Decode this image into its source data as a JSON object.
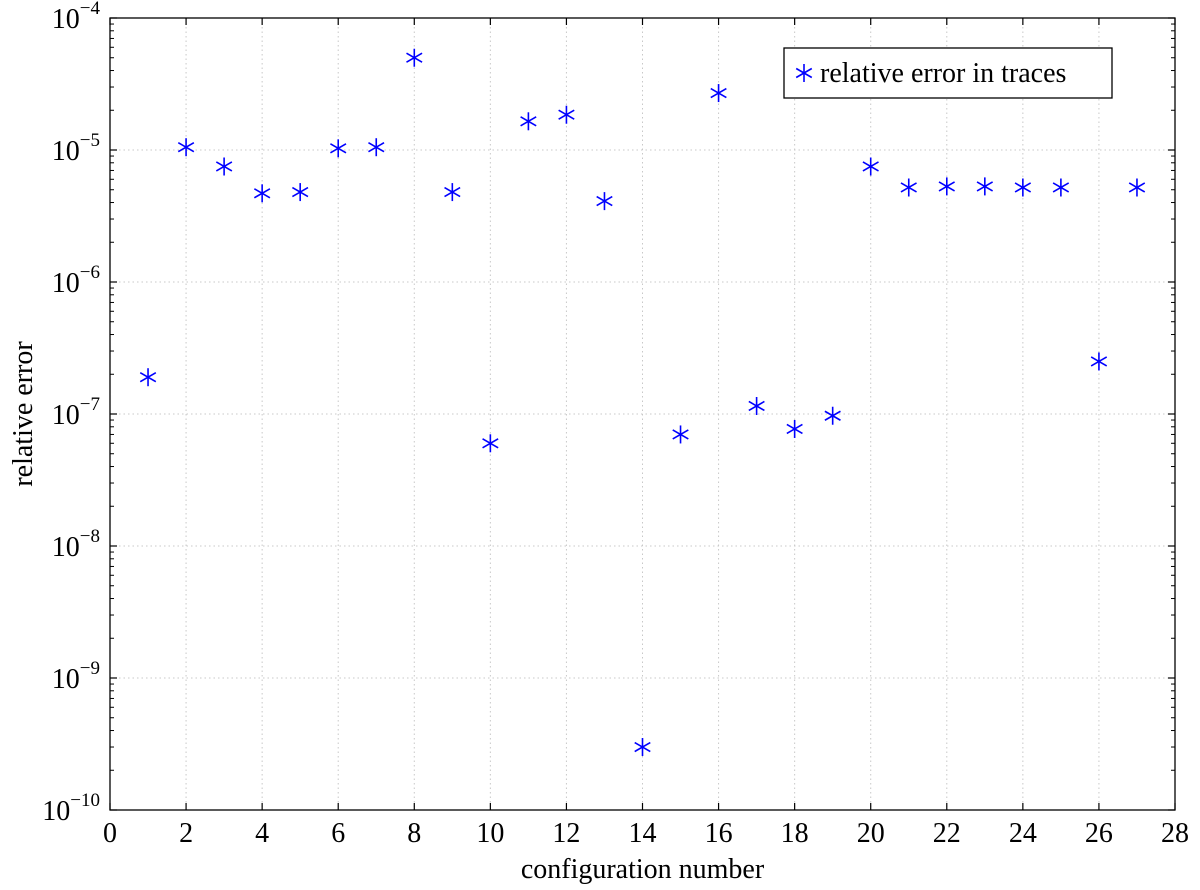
{
  "chart_data": {
    "type": "scatter",
    "xlabel": "configuration number",
    "ylabel": "relative error",
    "xlim": [
      0,
      28
    ],
    "ylim": [
      1e-10,
      0.0001
    ],
    "yscale": "log",
    "grid": true,
    "legend_position": "top-right",
    "x_ticks": [
      0,
      2,
      4,
      6,
      8,
      10,
      12,
      14,
      16,
      18,
      20,
      22,
      24,
      26,
      28
    ],
    "y_ticks": [
      {
        "base": "10",
        "exp": "−10",
        "value": 1e-10
      },
      {
        "base": "10",
        "exp": "−9",
        "value": 1e-09
      },
      {
        "base": "10",
        "exp": "−8",
        "value": 1e-08
      },
      {
        "base": "10",
        "exp": "−7",
        "value": 1e-07
      },
      {
        "base": "10",
        "exp": "−6",
        "value": 1e-06
      },
      {
        "base": "10",
        "exp": "−5",
        "value": 1e-05
      },
      {
        "base": "10",
        "exp": "−4",
        "value": 0.0001
      }
    ],
    "series": [
      {
        "name": "relative error in traces",
        "color": "#0000ff",
        "marker": "asterisk",
        "x": [
          1,
          2,
          3,
          4,
          5,
          6,
          7,
          8,
          9,
          10,
          11,
          12,
          13,
          14,
          15,
          16,
          17,
          18,
          19,
          20,
          21,
          22,
          23,
          24,
          25,
          26,
          27
        ],
        "y": [
          1.9e-07,
          1.05e-05,
          7.5e-06,
          4.7e-06,
          4.8e-06,
          1.03e-05,
          1.05e-05,
          5e-05,
          4.8e-06,
          6e-08,
          1.65e-05,
          1.85e-05,
          4.1e-06,
          3e-10,
          7e-08,
          2.7e-05,
          1.15e-07,
          7.7e-08,
          9.7e-08,
          7.5e-06,
          5.2e-06,
          5.3e-06,
          5.3e-06,
          5.2e-06,
          5.2e-06,
          2.5e-07,
          5.2e-06
        ]
      }
    ]
  }
}
